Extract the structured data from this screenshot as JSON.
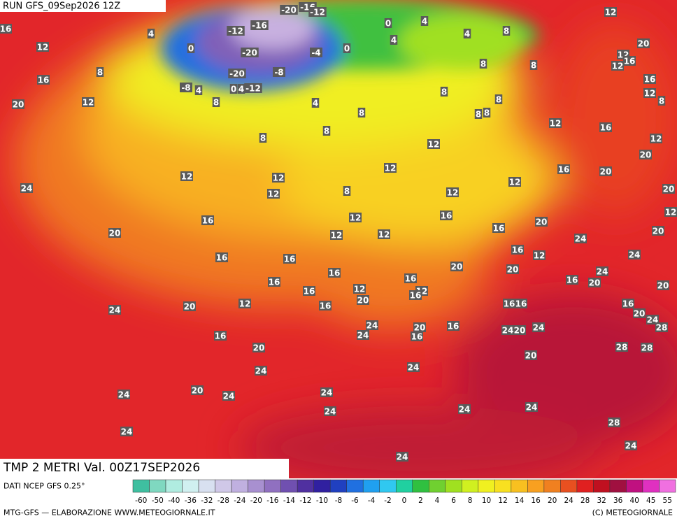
{
  "header": {
    "run": "RUN GFS_09Sep2026 12Z",
    "title": "TMP 2 METRI Val. 00Z17SEP2026"
  },
  "footer": {
    "source": "DATI NCEP GFS 0.25°",
    "credit": "MTG-GFS — ELABORAZIONE WWW.METEOGIORNALE.IT",
    "copyright": "(C) METEOGIORNALE"
  },
  "colorbar": {
    "labels": [
      -60,
      -50,
      -40,
      -36,
      -32,
      -28,
      -24,
      -20,
      -16,
      -14,
      -12,
      -10,
      -8,
      -6,
      -4,
      -2,
      0,
      2,
      4,
      6,
      8,
      10,
      12,
      14,
      16,
      20,
      24,
      28,
      32,
      36,
      40,
      45,
      55
    ],
    "colors": [
      "#3fbfa0",
      "#7fd8c0",
      "#b0ece0",
      "#d0f0f0",
      "#d8e0f0",
      "#d0c8e8",
      "#c0b0e0",
      "#a890d0",
      "#9070c0",
      "#7050b0",
      "#5030a0",
      "#3020a0",
      "#2040c0",
      "#2070e0",
      "#20a0f0",
      "#30c8f0",
      "#20d0a0",
      "#30c040",
      "#70d030",
      "#a0e020",
      "#d0f020",
      "#f0f020",
      "#f8e020",
      "#f8c020",
      "#f8a020",
      "#f08020",
      "#e85020",
      "#e02020",
      "#c01020",
      "#a01040",
      "#c01080",
      "#e030c0",
      "#f070e0"
    ]
  },
  "map_labels": [
    16,
    4,
    12,
    0,
    8,
    16,
    12,
    20,
    8,
    4,
    8,
    8,
    8,
    24,
    12,
    12,
    12,
    8,
    16,
    20,
    16,
    16,
    16,
    16,
    16,
    12,
    12,
    12,
    12,
    12,
    12,
    16,
    16,
    16,
    12,
    20,
    20,
    20,
    16,
    20,
    24,
    24,
    24,
    20,
    16,
    20,
    24,
    28,
    28,
    28,
    28,
    24,
    24,
    24,
    20,
    24,
    24,
    20,
    16,
    16,
    16,
    20,
    16,
    24,
    16,
    12,
    16,
    12,
    20,
    16,
    24,
    24,
    12,
    20,
    24,
    16,
    20,
    24,
    20,
    24,
    24,
    24,
    24,
    24,
    24,
    16,
    12,
    12,
    16,
    20,
    12,
    20,
    12,
    16,
    8,
    12,
    12,
    16,
    20,
    20,
    12,
    20,
    12,
    8,
    4,
    4,
    0,
    4,
    0,
    -4,
    8,
    8,
    8,
    8,
    8,
    8,
    -20,
    -16,
    -12,
    -16,
    -12,
    -20,
    -20,
    -8,
    -8,
    4,
    0,
    4,
    -12
  ]
}
